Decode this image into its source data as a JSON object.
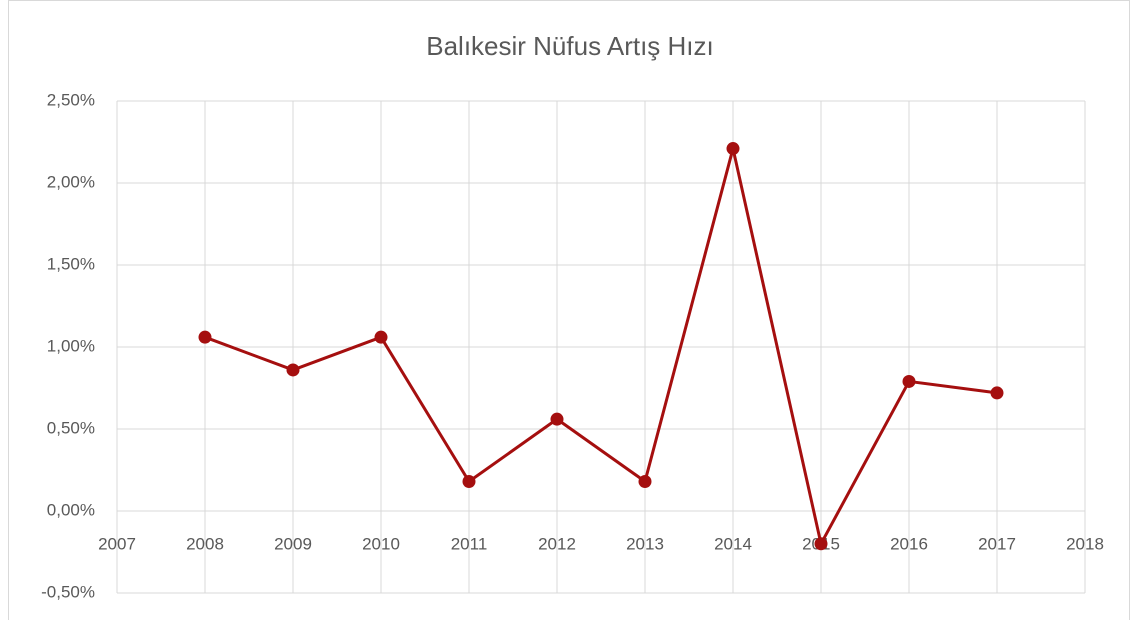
{
  "chart_data": {
    "type": "line",
    "title": "Balıkesir Nüfus Artış Hızı",
    "x": [
      2008,
      2009,
      2010,
      2011,
      2012,
      2013,
      2014,
      2015,
      2016,
      2017
    ],
    "series": [
      {
        "color": "#a50f0f",
        "values": [
          1.06,
          0.86,
          1.06,
          0.18,
          0.56,
          0.18,
          2.21,
          -0.2,
          0.79,
          0.72
        ]
      }
    ],
    "xlim": [
      2007,
      2018
    ],
    "xticks": [
      2007,
      2008,
      2009,
      2010,
      2011,
      2012,
      2013,
      2014,
      2015,
      2016,
      2017,
      2018
    ],
    "ylim": [
      -0.5,
      2.5
    ],
    "yticks": [
      {
        "value": -0.5,
        "label": "-0,50%"
      },
      {
        "value": 0,
        "label": "0,00%"
      },
      {
        "value": 0.5,
        "label": "0,50%"
      },
      {
        "value": 1,
        "label": "1,00%"
      },
      {
        "value": 1.5,
        "label": "1,50%"
      },
      {
        "value": 2,
        "label": "2,00%"
      },
      {
        "value": 2.5,
        "label": "2,50%"
      }
    ],
    "grid": true
  }
}
